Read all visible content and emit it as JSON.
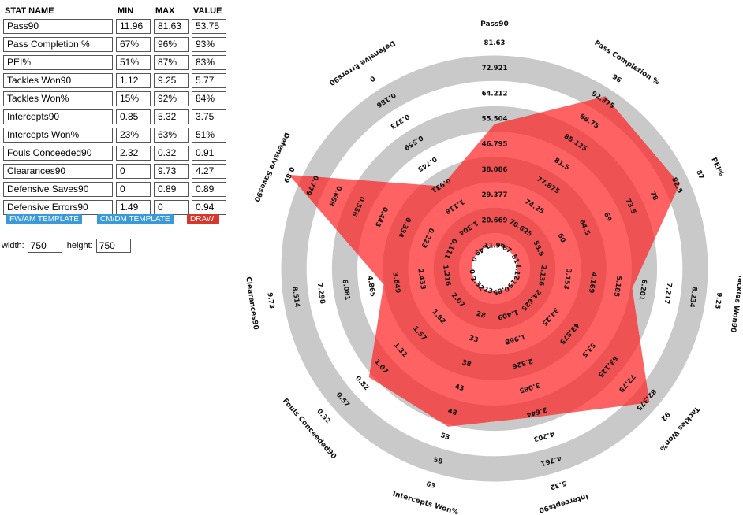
{
  "table": {
    "headers": [
      "STAT NAME",
      "MIN",
      "MAX",
      "VALUE"
    ],
    "rows": [
      {
        "name": "Pass90",
        "min": "11.96",
        "max": "81.63",
        "value": "53.75"
      },
      {
        "name": "Pass Completion %",
        "min": "67%",
        "max": "96%",
        "value": "93%"
      },
      {
        "name": "PEI%",
        "min": "51%",
        "max": "87%",
        "value": "83%"
      },
      {
        "name": "Tackles  Won90",
        "min": "1.12",
        "max": "9.25",
        "value": "5.77"
      },
      {
        "name": "Tackles  Won%",
        "min": "15%",
        "max": "92%",
        "value": "84%"
      },
      {
        "name": "Intercepts90",
        "min": "0.85",
        "max": "5.32",
        "value": "3.75"
      },
      {
        "name": "Intercepts Won%",
        "min": "23%",
        "max": "63%",
        "value": "51%"
      },
      {
        "name": "Fouls Conceeded90",
        "min": "2.32",
        "max": "0.32",
        "value": "0.91"
      },
      {
        "name": "Clearances90",
        "min": "0",
        "max": "9.73",
        "value": "4.27"
      },
      {
        "name": "Defensive Saves90",
        "min": "0",
        "max": "0.89",
        "value": "0.89"
      },
      {
        "name": "Defensive Errors90",
        "min": "1.49",
        "max": "0",
        "value": "0.94"
      }
    ]
  },
  "buttons": {
    "fw_template": "FW/AM TEMPLATE",
    "cm_template": "CM/DM TEMPLATE",
    "draw": "DRAW!"
  },
  "dimensions": {
    "width_label": "width:",
    "width_value": "750",
    "height_label": "height:",
    "height_value": "750"
  },
  "colors": {
    "ring": "#c9c9c9",
    "fill": "#ff2020",
    "button_blue": "#3a9ad9",
    "button_red": "#d9362b"
  },
  "chart_data": {
    "type": "radar",
    "axes": [
      {
        "label": "Pass90",
        "min": 11.96,
        "max": 81.63,
        "value": 53.75,
        "ticks": [
          "11.96",
          "20.669",
          "29.377",
          "38.086",
          "46.795",
          "55.504",
          "64.212",
          "72.921",
          "81.63"
        ]
      },
      {
        "label": "Pass Completion %",
        "min": 67,
        "max": 96,
        "value": 93,
        "ticks": [
          "67",
          "70.625",
          "74.25",
          "77.875",
          "81.5",
          "85.125",
          "88.75",
          "92.375",
          "96"
        ]
      },
      {
        "label": "PEI%",
        "min": 51,
        "max": 87,
        "value": 83,
        "ticks": [
          "51",
          "55.5",
          "60",
          "64.5",
          "69",
          "73.5",
          "78",
          "82.5",
          "87"
        ]
      },
      {
        "label": "Tackles  Won90",
        "min": 1.12,
        "max": 9.25,
        "value": 5.77,
        "ticks": [
          "1.12",
          "2.136",
          "3.153",
          "4.169",
          "5.185",
          "6.201",
          "7.217",
          "8.234",
          "9.25"
        ]
      },
      {
        "label": "Tackles  Won%",
        "min": 15,
        "max": 92,
        "value": 84,
        "ticks": [
          "15",
          "24.625",
          "34.25",
          "43.875",
          "53.5",
          "63.125",
          "72.75",
          "82.375",
          "92"
        ]
      },
      {
        "label": "Intercepts90",
        "min": 0.85,
        "max": 5.32,
        "value": 3.75,
        "ticks": [
          "0.85",
          "1.409",
          "1.968",
          "2.526",
          "3.085",
          "3.644",
          "4.203",
          "4.761",
          "5.32"
        ]
      },
      {
        "label": "Intercepts Won%",
        "min": 23,
        "max": 63,
        "value": 51,
        "ticks": [
          "23",
          "28",
          "33",
          "38",
          "43",
          "48",
          "53",
          "58",
          "63"
        ]
      },
      {
        "label": "Fouls Conceeded90",
        "min": 2.32,
        "max": 0.32,
        "value": 0.91,
        "ticks": [
          "2.32",
          "2.07",
          "1.82",
          "1.57",
          "1.32",
          "1.07",
          "0.82",
          "0.57",
          "0.32"
        ]
      },
      {
        "label": "Clearances90",
        "min": 0,
        "max": 9.73,
        "value": 4.27,
        "ticks": [
          "0",
          "1.216",
          "2.433",
          "3.649",
          "4.865",
          "6.081",
          "7.298",
          "8.514",
          "9.73"
        ]
      },
      {
        "label": "Defensive Saves90",
        "min": 0,
        "max": 0.89,
        "value": 0.89,
        "ticks": [
          "0",
          "0.111",
          "0.223",
          "0.334",
          "0.445",
          "0.556",
          "0.668",
          "0.779",
          "0.89"
        ]
      },
      {
        "label": "Defensive Errors90",
        "min": 1.49,
        "max": 0,
        "value": 0.94,
        "ticks": [
          "1.49",
          "1.304",
          "1.118",
          "0.931",
          "0.745",
          "0.559",
          "0.373",
          "0.186",
          "0"
        ]
      }
    ]
  }
}
